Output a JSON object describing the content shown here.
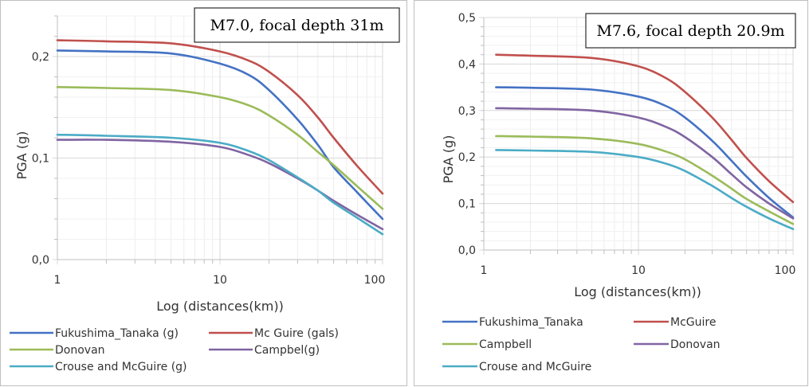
{
  "chart_data": [
    {
      "type": "line",
      "annotation": "M7.0,  focal depth 31m",
      "xlabel": "Log (distances(km))",
      "ylabel": "PGA (g)",
      "xscale": "log",
      "xlim": [
        1,
        100
      ],
      "ylim": [
        0,
        0.24
      ],
      "xticks": [
        {
          "v": 1,
          "label": "1"
        },
        {
          "v": 10,
          "label": "10"
        },
        {
          "v": 100,
          "label": "100"
        }
      ],
      "yticks": [
        {
          "v": 0,
          "label": "0,0"
        },
        {
          "v": 0.1,
          "label": "0,1"
        },
        {
          "v": 0.2,
          "label": "0,2"
        }
      ],
      "grid": true,
      "legend_position": "bottom",
      "x": [
        1,
        2,
        5,
        10,
        15,
        20,
        30,
        40,
        50,
        70,
        100
      ],
      "series": [
        {
          "name": "Fukushima_Tanaka (g)",
          "color": "#4472c4",
          "values": [
            0.206,
            0.205,
            0.203,
            0.193,
            0.182,
            0.167,
            0.138,
            0.113,
            0.091,
            0.066,
            0.04
          ]
        },
        {
          "name": "Mc Guire (gals)",
          "color": "#c0504d",
          "values": [
            0.216,
            0.215,
            0.213,
            0.205,
            0.196,
            0.185,
            0.162,
            0.14,
            0.12,
            0.092,
            0.065
          ]
        },
        {
          "name": "Donovan",
          "color": "#9bbb59",
          "values": [
            0.17,
            0.169,
            0.167,
            0.16,
            0.152,
            0.142,
            0.123,
            0.106,
            0.093,
            0.072,
            0.05
          ]
        },
        {
          "name": "Campbel(g)",
          "color": "#8064a2",
          "values": [
            0.118,
            0.118,
            0.116,
            0.111,
            0.103,
            0.095,
            0.08,
            0.068,
            0.058,
            0.044,
            0.03
          ]
        },
        {
          "name": "Crouse and McGuire (g)",
          "color": "#4bacc6",
          "values": [
            0.123,
            0.122,
            0.12,
            0.115,
            0.107,
            0.098,
            0.081,
            0.068,
            0.056,
            0.041,
            0.025
          ]
        }
      ]
    },
    {
      "type": "line",
      "annotation": "M7.6, focal depth 20.9m",
      "xlabel": "Log (distances(km))",
      "ylabel": "PGA (g)",
      "xscale": "log",
      "xlim": [
        1,
        100
      ],
      "ylim": [
        0,
        0.5
      ],
      "xticks": [
        {
          "v": 1,
          "label": "1"
        },
        {
          "v": 10,
          "label": "10"
        },
        {
          "v": 100,
          "label": "100"
        }
      ],
      "yticks": [
        {
          "v": 0,
          "label": "0,0"
        },
        {
          "v": 0.1,
          "label": "0,1"
        },
        {
          "v": 0.2,
          "label": "0,2"
        },
        {
          "v": 0.3,
          "label": "0,3"
        },
        {
          "v": 0.4,
          "label": "0,4"
        },
        {
          "v": 0.5,
          "label": "0,5"
        }
      ],
      "grid": true,
      "legend_position": "bottom",
      "x": [
        1.2,
        2,
        5,
        10,
        15,
        20,
        30,
        40,
        50,
        70,
        100
      ],
      "series": [
        {
          "name": "Fukushima_Tanaka",
          "color": "#4472c4",
          "values": [
            0.35,
            0.349,
            0.345,
            0.33,
            0.31,
            0.285,
            0.235,
            0.192,
            0.158,
            0.112,
            0.07
          ]
        },
        {
          "name": "McGuire",
          "color": "#c0504d",
          "values": [
            0.42,
            0.418,
            0.413,
            0.395,
            0.37,
            0.34,
            0.285,
            0.237,
            0.198,
            0.148,
            0.103
          ]
        },
        {
          "name": "Campbell",
          "color": "#9bbb59",
          "values": [
            0.245,
            0.244,
            0.24,
            0.228,
            0.212,
            0.195,
            0.16,
            0.132,
            0.11,
            0.083,
            0.056
          ]
        },
        {
          "name": "Donovan",
          "color": "#8064a2",
          "values": [
            0.305,
            0.304,
            0.3,
            0.285,
            0.265,
            0.243,
            0.2,
            0.163,
            0.135,
            0.1,
            0.068
          ]
        },
        {
          "name": "Crouse and McGuire",
          "color": "#4bacc6",
          "values": [
            0.215,
            0.214,
            0.211,
            0.2,
            0.186,
            0.17,
            0.138,
            0.112,
            0.093,
            0.068,
            0.045
          ]
        }
      ]
    }
  ]
}
